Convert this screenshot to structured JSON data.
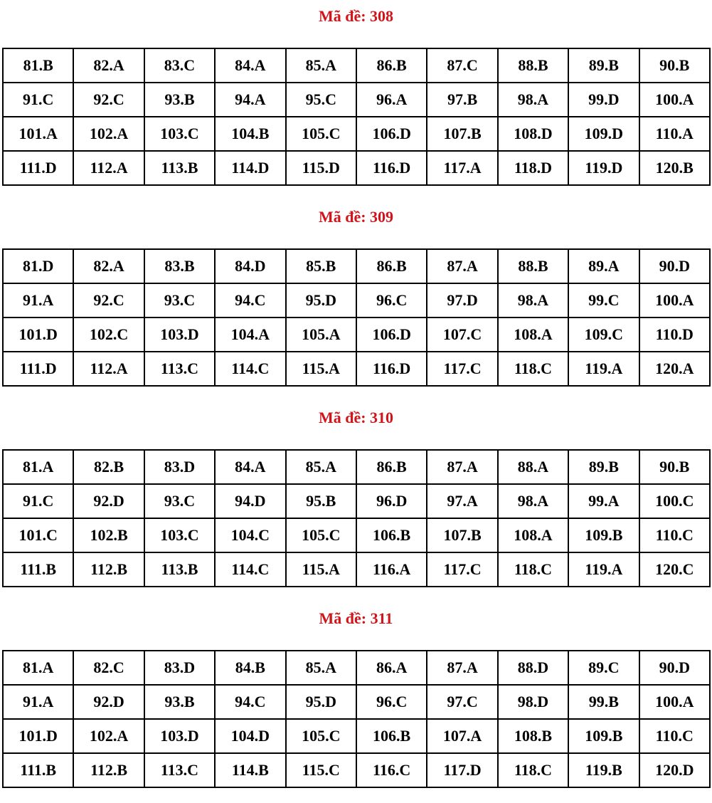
{
  "colors": {
    "title": "#d0141a",
    "text": "#000000"
  },
  "sections": [
    {
      "title": "Mã đề: 308",
      "rows": [
        [
          "81.B",
          "82.A",
          "83.C",
          "84.A",
          "85.A",
          "86.B",
          "87.C",
          "88.B",
          "89.B",
          "90.B"
        ],
        [
          "91.C",
          "92.C",
          "93.B",
          "94.A",
          "95.C",
          "96.A",
          "97.B",
          "98.A",
          "99.D",
          "100.A"
        ],
        [
          "101.A",
          "102.A",
          "103.C",
          "104.B",
          "105.C",
          "106.D",
          "107.B",
          "108.D",
          "109.D",
          "110.A"
        ],
        [
          "111.D",
          "112.A",
          "113.B",
          "114.D",
          "115.D",
          "116.D",
          "117.A",
          "118.D",
          "119.D",
          "120.B"
        ]
      ]
    },
    {
      "title": "Mã đề: 309",
      "rows": [
        [
          "81.D",
          "82.A",
          "83.B",
          "84.D",
          "85.B",
          "86.B",
          "87.A",
          "88.B",
          "89.A",
          "90.D"
        ],
        [
          "91.A",
          "92.C",
          "93.C",
          "94.C",
          "95.D",
          "96.C",
          "97.D",
          "98.A",
          "99.C",
          "100.A"
        ],
        [
          "101.D",
          "102.C",
          "103.D",
          "104.A",
          "105.A",
          "106.D",
          "107.C",
          "108.A",
          "109.C",
          "110.D"
        ],
        [
          "111.D",
          "112.A",
          "113.C",
          "114.C",
          "115.A",
          "116.D",
          "117.C",
          "118.C",
          "119.A",
          "120.A"
        ]
      ]
    },
    {
      "title": "Mã đề: 310",
      "rows": [
        [
          "81.A",
          "82.B",
          "83.D",
          "84.A",
          "85.A",
          "86.B",
          "87.A",
          "88.A",
          "89.B",
          "90.B"
        ],
        [
          "91.C",
          "92.D",
          "93.C",
          "94.D",
          "95.B",
          "96.D",
          "97.A",
          "98.A",
          "99.A",
          "100.C"
        ],
        [
          "101.C",
          "102.B",
          "103.C",
          "104.C",
          "105.C",
          "106.B",
          "107.B",
          "108.A",
          "109.B",
          "110.C"
        ],
        [
          "111.B",
          "112.B",
          "113.B",
          "114.C",
          "115.A",
          "116.A",
          "117.C",
          "118.C",
          "119.A",
          "120.C"
        ]
      ]
    },
    {
      "title": "Mã đề: 311",
      "rows": [
        [
          "81.A",
          "82.C",
          "83.D",
          "84.B",
          "85.A",
          "86.A",
          "87.A",
          "88.D",
          "89.C",
          "90.D"
        ],
        [
          "91.A",
          "92.D",
          "93.B",
          "94.C",
          "95.D",
          "96.C",
          "97.C",
          "98.D",
          "99.B",
          "100.A"
        ],
        [
          "101.D",
          "102.A",
          "103.D",
          "104.D",
          "105.C",
          "106.B",
          "107.A",
          "108.B",
          "109.B",
          "110.C"
        ],
        [
          "111.B",
          "112.B",
          "113.C",
          "114.B",
          "115.C",
          "116.C",
          "117.D",
          "118.C",
          "119.B",
          "120.D"
        ]
      ]
    }
  ]
}
